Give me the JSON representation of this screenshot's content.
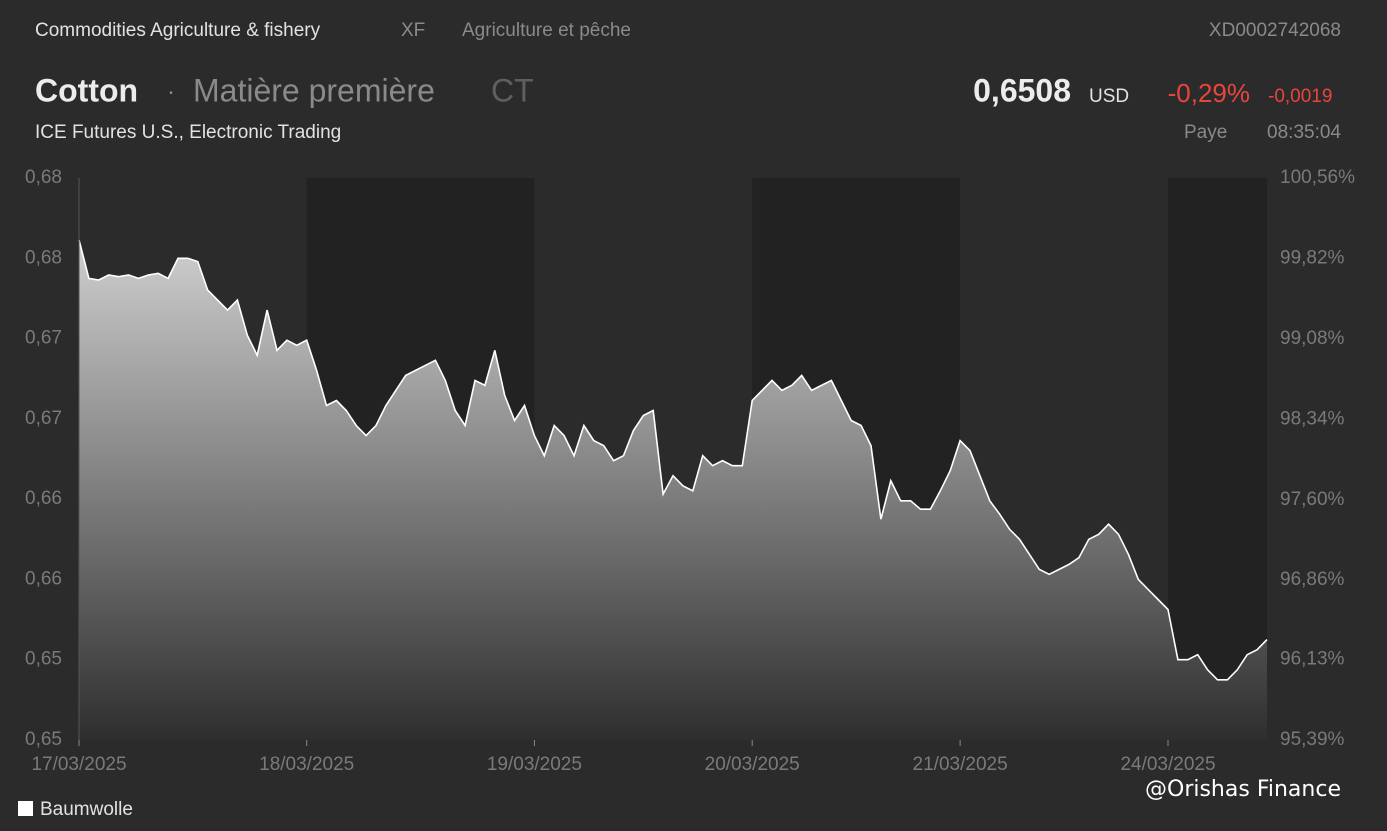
{
  "header": {
    "category": "Commodities Agriculture & fishery",
    "code": "XF",
    "category_fr": "Agriculture et pêche",
    "isin": "XD0002742068",
    "name": "Cotton",
    "separator": "·",
    "kind": "Matière première",
    "symbol": "CT",
    "price": "0,6508",
    "currency": "USD",
    "change_pct": "-0,29%",
    "change_abs": "-0,0019",
    "exchange": "ICE Futures U.S., Electronic Trading",
    "status": "Paye",
    "time": "08:35:04"
  },
  "chart_data": {
    "type": "area",
    "x": [
      0,
      1,
      2,
      3,
      4,
      5,
      6,
      7,
      8,
      9,
      10,
      11,
      12,
      13,
      14,
      15,
      16,
      17,
      18,
      19,
      20,
      21,
      22,
      23,
      24,
      25,
      26,
      27,
      28,
      29,
      30,
      31,
      32,
      33,
      34,
      35,
      36,
      37,
      38,
      39,
      40,
      41,
      42,
      43,
      44,
      45,
      46,
      47,
      48,
      49,
      50,
      51,
      52,
      53,
      54,
      55,
      56,
      57,
      58,
      59,
      60,
      61,
      62,
      63,
      64,
      65,
      66,
      67,
      68,
      69,
      70,
      71,
      72,
      73,
      74,
      75,
      76,
      77,
      78,
      79,
      80,
      81,
      82,
      83,
      84,
      85,
      86,
      87,
      88,
      89,
      90,
      91,
      92,
      93,
      94,
      95,
      96,
      97,
      98,
      99,
      100,
      101,
      102,
      103,
      104,
      105,
      106,
      107,
      108,
      109,
      110,
      111,
      112,
      113,
      114,
      115,
      116,
      117,
      118,
      119,
      120
    ],
    "series": [
      {
        "name": "Baumwolle",
        "color": "#ffffff",
        "values": [
          0.6769,
          0.6746,
          0.6745,
          0.6748,
          0.6747,
          0.6748,
          0.6746,
          0.6748,
          0.6749,
          0.6746,
          0.6758,
          0.6758,
          0.6756,
          0.6739,
          0.6733,
          0.6727,
          0.6733,
          0.6712,
          0.67,
          0.6727,
          0.6703,
          0.6709,
          0.6706,
          0.6709,
          0.6691,
          0.667,
          0.6673,
          0.6667,
          0.6658,
          0.6652,
          0.6658,
          0.667,
          0.6679,
          0.6688,
          0.6691,
          0.6694,
          0.6697,
          0.6685,
          0.6667,
          0.6658,
          0.6685,
          0.6682,
          0.6703,
          0.6676,
          0.6661,
          0.667,
          0.6652,
          0.664,
          0.6658,
          0.6652,
          0.664,
          0.6658,
          0.6649,
          0.6646,
          0.6637,
          0.664,
          0.6655,
          0.6664,
          0.6667,
          0.6617,
          0.6628,
          0.6622,
          0.6619,
          0.664,
          0.6634,
          0.6637,
          0.6634,
          0.6634,
          0.6673,
          0.6679,
          0.6685,
          0.6679,
          0.6682,
          0.6688,
          0.6679,
          0.6682,
          0.6685,
          0.6673,
          0.6661,
          0.6658,
          0.6646,
          0.6602,
          0.6625,
          0.6613,
          0.6613,
          0.6608,
          0.6608,
          0.6619,
          0.6631,
          0.6649,
          0.6643,
          0.6628,
          0.6613,
          0.6605,
          0.6596,
          0.659,
          0.6581,
          0.6572,
          0.6569,
          0.6572,
          0.6575,
          0.6579,
          0.659,
          0.6593,
          0.6599,
          0.6593,
          0.6581,
          0.6566,
          0.656,
          0.6554,
          0.6548,
          0.6518,
          0.6518,
          0.6521,
          0.6512,
          0.6506,
          0.6506,
          0.6512,
          0.6521,
          0.6524,
          0.653
        ]
      }
    ],
    "xlim": [
      0,
      120
    ],
    "xticks": [
      {
        "value": 0,
        "label": "17/03/2025"
      },
      {
        "value": 23,
        "label": "18/03/2025"
      },
      {
        "value": 46,
        "label": "19/03/2025"
      },
      {
        "value": 68,
        "label": "20/03/2025"
      },
      {
        "value": 89,
        "label": "21/03/2025"
      },
      {
        "value": 110,
        "label": "24/03/2025"
      }
    ],
    "ylim": [
      0.647,
      0.6806
    ],
    "yticks": [
      {
        "value": 0.647,
        "label": "0,65"
      },
      {
        "value": 0.6518,
        "label": "0,65"
      },
      {
        "value": 0.6566,
        "label": "0,66"
      },
      {
        "value": 0.6614,
        "label": "0,66"
      },
      {
        "value": 0.6662,
        "label": "0,67"
      },
      {
        "value": 0.671,
        "label": "0,67"
      },
      {
        "value": 0.6758,
        "label": "0,68"
      },
      {
        "value": 0.6806,
        "label": "0,68"
      }
    ],
    "y2lim": [
      95.39,
      100.56
    ],
    "y2ticks": [
      {
        "value": 95.39,
        "label": "95,39%"
      },
      {
        "value": 96.13,
        "label": "96,13%"
      },
      {
        "value": 96.86,
        "label": "96,86%"
      },
      {
        "value": 97.6,
        "label": "97,60%"
      },
      {
        "value": 98.34,
        "label": "98,34%"
      },
      {
        "value": 99.08,
        "label": "99,08%"
      },
      {
        "value": 99.82,
        "label": "99,82%"
      },
      {
        "value": 100.56,
        "label": "100,56%"
      }
    ],
    "watermark": "@Orishas Finance"
  }
}
